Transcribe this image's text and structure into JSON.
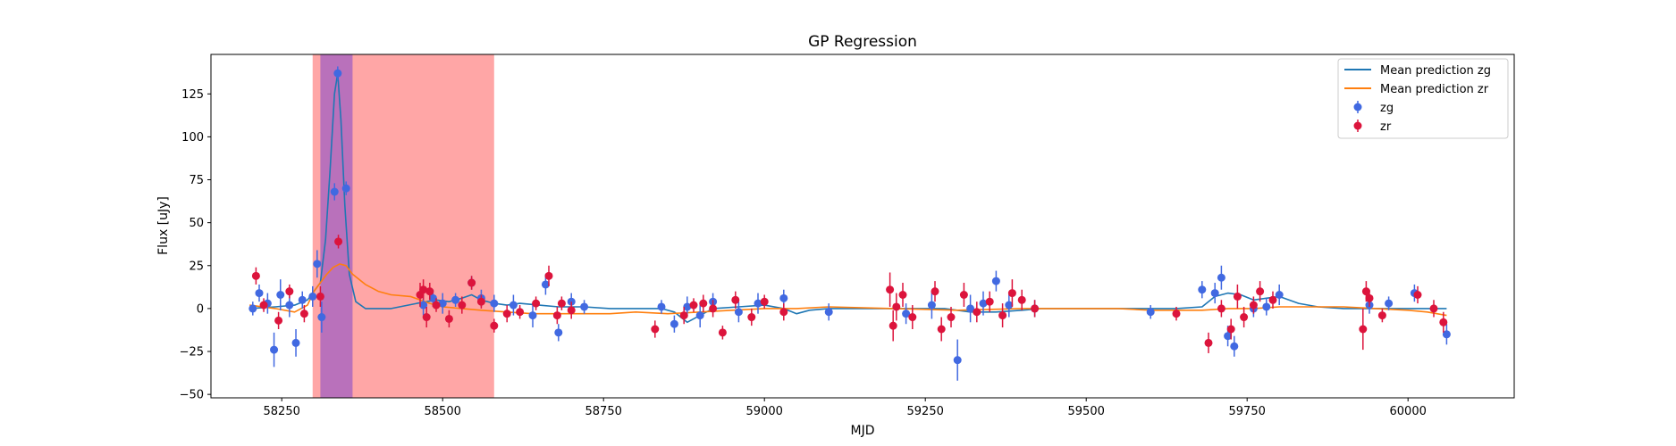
{
  "chart_data": {
    "type": "scatter",
    "title": "GP Regression",
    "xlabel": "MJD",
    "ylabel": "Flux [uJy]",
    "xlim": [
      58140,
      60165
    ],
    "ylim": [
      -52,
      148
    ],
    "xticks": [
      58250,
      58500,
      58750,
      59000,
      59250,
      59500,
      59750,
      60000
    ],
    "yticks": [
      -50,
      -25,
      0,
      25,
      50,
      75,
      100,
      125
    ],
    "grid": false,
    "legend_position": "top-right",
    "shaded_regions": [
      {
        "x": [
          58298,
          58580
        ],
        "color": "#ff6b6b",
        "opacity": 0.6
      },
      {
        "x": [
          58310,
          58360
        ],
        "color": "#8a4fc9",
        "opacity": 0.6
      }
    ],
    "series": [
      {
        "name": "Mean prediction zg",
        "kind": "line",
        "color": "#1f77b4",
        "x": [
          58200,
          58240,
          58270,
          58290,
          58300,
          58310,
          58318,
          58325,
          58332,
          58337,
          58342,
          58348,
          58355,
          58365,
          58380,
          58420,
          58460,
          58490,
          58510,
          58530,
          58545,
          58560,
          58580,
          58600,
          58620,
          58650,
          58680,
          58720,
          58760,
          58800,
          58840,
          58860,
          58880,
          58900,
          58920,
          58960,
          59000,
          59030,
          59050,
          59070,
          59100,
          59150,
          59200,
          59250,
          59280,
          59320,
          59360,
          59400,
          59430,
          59460,
          59500,
          59550,
          59600,
          59640,
          59680,
          59700,
          59720,
          59740,
          59760,
          59780,
          59800,
          59830,
          59860,
          59900,
          59950,
          60000,
          60030,
          60060
        ],
        "y": [
          0,
          1,
          2,
          5,
          10,
          15,
          40,
          80,
          125,
          137,
          110,
          60,
          20,
          4,
          0,
          0,
          3,
          5,
          4,
          6,
          8,
          5,
          3,
          2,
          3,
          2,
          1,
          1,
          0,
          0,
          0,
          -2,
          -8,
          -4,
          0,
          1,
          2,
          0,
          -3,
          -1,
          0,
          0,
          0,
          0,
          0,
          -2,
          -2,
          -1,
          0,
          0,
          0,
          0,
          0,
          0,
          1,
          7,
          9,
          8,
          5,
          6,
          7,
          3,
          1,
          0,
          0,
          0,
          0,
          0
        ]
      },
      {
        "name": "Mean prediction zr",
        "kind": "line",
        "color": "#ff7f0e",
        "x": [
          58200,
          58240,
          58270,
          58290,
          58300,
          58310,
          58320,
          58330,
          58340,
          58350,
          58360,
          58380,
          58400,
          58420,
          58450,
          58480,
          58500,
          58530,
          58560,
          58600,
          58640,
          58680,
          58720,
          58760,
          58800,
          58850,
          58900,
          58950,
          59000,
          59050,
          59100,
          59200,
          59300,
          59400,
          59450,
          59500,
          59550,
          59600,
          59640,
          59680,
          59720,
          59760,
          59800,
          59850,
          59900,
          59950,
          60000,
          60030,
          60060
        ],
        "y": [
          2,
          0,
          -2,
          2,
          10,
          15,
          20,
          24,
          26,
          25,
          20,
          14,
          10,
          8,
          7,
          3,
          1,
          0,
          -1,
          -2,
          -3,
          -3,
          -3,
          -3,
          -2,
          -3,
          -2,
          -1,
          0,
          0,
          1,
          0,
          -1,
          0,
          0,
          0,
          0,
          -1,
          -1,
          -1,
          0,
          0,
          1,
          1,
          1,
          0,
          -1,
          -2,
          -4
        ]
      },
      {
        "name": "zg",
        "kind": "errorbar",
        "color": "#4169e1",
        "x": [
          58205,
          58215,
          58228,
          58238,
          58248,
          58262,
          58272,
          58282,
          58298,
          58305,
          58312,
          58332,
          58337,
          58350,
          58470,
          58485,
          58500,
          58520,
          58545,
          58560,
          58580,
          58610,
          58640,
          58660,
          58680,
          58700,
          58720,
          58840,
          58860,
          58880,
          58900,
          58920,
          58960,
          58990,
          59030,
          59100,
          59220,
          59260,
          59300,
          59320,
          59340,
          59360,
          59380,
          59420,
          59600,
          59680,
          59700,
          59710,
          59720,
          59730,
          59760,
          59780,
          59800,
          59940,
          59970,
          60010,
          60060
        ],
        "y": [
          0,
          9,
          3,
          -24,
          8,
          2,
          -20,
          5,
          7,
          26,
          -5,
          68,
          137,
          70,
          2,
          6,
          3,
          5,
          15,
          6,
          3,
          2,
          -4,
          14,
          -14,
          4,
          1,
          1,
          -9,
          1,
          -4,
          4,
          -2,
          3,
          6,
          -2,
          -3,
          2,
          -30,
          0,
          3,
          16,
          2,
          0,
          -2,
          11,
          9,
          18,
          -16,
          -22,
          0,
          1,
          8,
          2,
          3,
          9,
          -15
        ],
        "yerr": [
          4,
          5,
          6,
          10,
          9,
          7,
          8,
          5,
          6,
          8,
          9,
          5,
          4,
          4,
          6,
          5,
          6,
          4,
          4,
          5,
          5,
          6,
          7,
          6,
          5,
          5,
          4,
          4,
          5,
          6,
          7,
          5,
          6,
          6,
          5,
          5,
          6,
          8,
          12,
          8,
          7,
          6,
          7,
          5,
          4,
          5,
          6,
          7,
          6,
          6,
          5,
          5,
          6,
          5,
          4,
          5,
          6
        ]
      },
      {
        "name": "zr",
        "kind": "errorbar",
        "color": "#dc143c",
        "x": [
          58210,
          58222,
          58245,
          58262,
          58285,
          58310,
          58338,
          58465,
          58470,
          58475,
          58480,
          58490,
          58510,
          58530,
          58545,
          58560,
          58580,
          58600,
          58620,
          58645,
          58665,
          58678,
          58685,
          58700,
          58830,
          58875,
          58890,
          58905,
          58920,
          58935,
          58955,
          58980,
          59000,
          59030,
          59195,
          59200,
          59205,
          59215,
          59230,
          59265,
          59275,
          59290,
          59310,
          59330,
          59350,
          59370,
          59385,
          59400,
          59420,
          59640,
          59690,
          59710,
          59725,
          59735,
          59745,
          59760,
          59770,
          59790,
          59930,
          59935,
          59940,
          59960,
          60015,
          60040,
          60055
        ],
        "y": [
          19,
          2,
          -7,
          10,
          -3,
          7,
          39,
          8,
          11,
          -5,
          10,
          2,
          -6,
          2,
          15,
          4,
          -10,
          -3,
          -2,
          3,
          19,
          -4,
          3,
          -1,
          -12,
          -4,
          2,
          3,
          0,
          -14,
          5,
          -5,
          4,
          -2,
          11,
          -10,
          1,
          8,
          -5,
          10,
          -12,
          -5,
          8,
          -2,
          4,
          -4,
          9,
          5,
          0,
          -3,
          -20,
          0,
          -12,
          7,
          -5,
          2,
          10,
          5,
          -12,
          10,
          6,
          -4,
          8,
          0,
          -8
        ],
        "yerr": [
          5,
          4,
          5,
          4,
          5,
          6,
          4,
          7,
          6,
          6,
          5,
          4,
          5,
          5,
          4,
          4,
          4,
          5,
          4,
          4,
          6,
          5,
          4,
          5,
          5,
          5,
          4,
          5,
          5,
          4,
          5,
          5,
          4,
          5,
          10,
          9,
          8,
          7,
          7,
          6,
          7,
          6,
          7,
          6,
          6,
          7,
          8,
          6,
          5,
          4,
          6,
          5,
          6,
          7,
          6,
          5,
          6,
          5,
          12,
          6,
          5,
          4,
          5,
          5,
          6
        ]
      }
    ]
  }
}
